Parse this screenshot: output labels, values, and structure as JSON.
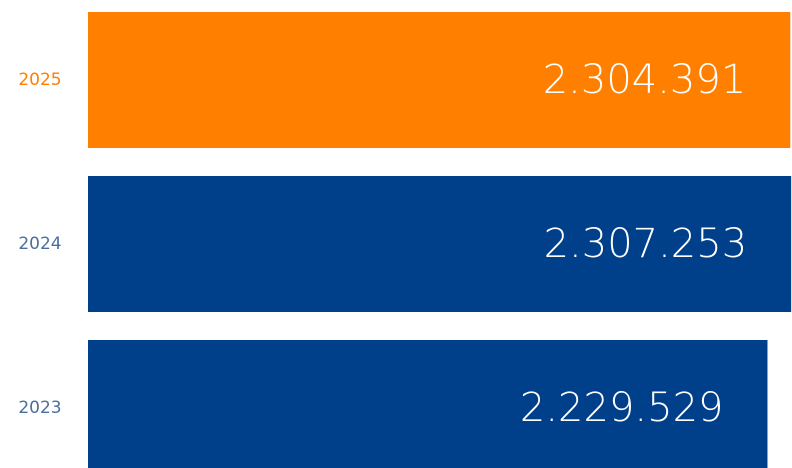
{
  "chart_data": {
    "type": "hbar",
    "categories": [
      "2025",
      "2024",
      "2023"
    ],
    "values": [
      2304391,
      2307253,
      2229529
    ],
    "value_labels": [
      "2.304.391",
      "2.307.253",
      "2.229.529"
    ],
    "colors": [
      "#ff7f00",
      "#003f8a",
      "#003f8a"
    ],
    "label_colors": [
      "#ff7f00",
      "#4a6f9e",
      "#4a6f9e"
    ],
    "xlim": [
      0,
      2310000
    ]
  }
}
